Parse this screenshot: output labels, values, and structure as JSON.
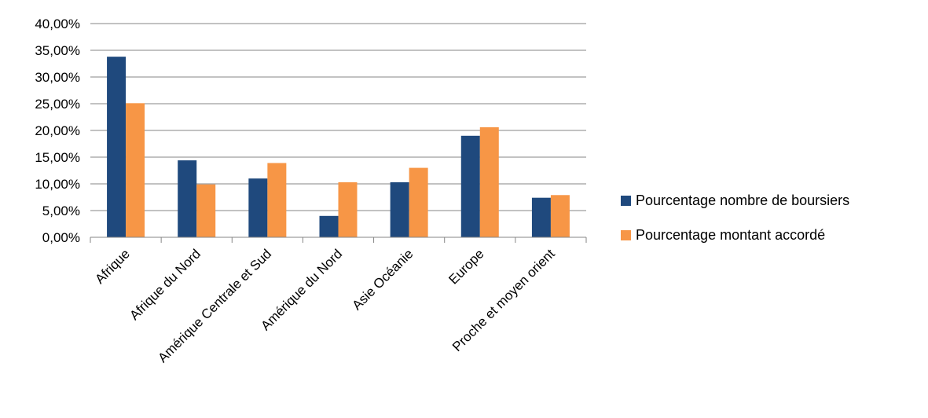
{
  "chart_data": {
    "type": "bar",
    "title": "",
    "xlabel": "",
    "ylabel": "",
    "categories": [
      "Afrique",
      "Afrique du Nord",
      "Amérique Centrale et Sud",
      "Amérique du Nord",
      "Asie Océanie",
      "Europe",
      "Proche et moyen orient"
    ],
    "series": [
      {
        "name": "Pourcentage nombre de boursiers",
        "color": "#1F497D",
        "values": [
          33.8,
          14.4,
          11.0,
          4.0,
          10.3,
          19.0,
          7.4
        ]
      },
      {
        "name": "Pourcentage montant accordé",
        "color": "#F79646",
        "values": [
          25.1,
          9.9,
          13.9,
          10.3,
          13.0,
          20.6,
          7.9
        ]
      }
    ],
    "ylim": [
      0,
      40
    ],
    "yticks": [
      "0,00%",
      "5,00%",
      "10,00%",
      "15,00%",
      "20,00%",
      "25,00%",
      "30,00%",
      "35,00%",
      "40,00%"
    ],
    "grid": true,
    "legend_position": "right"
  }
}
